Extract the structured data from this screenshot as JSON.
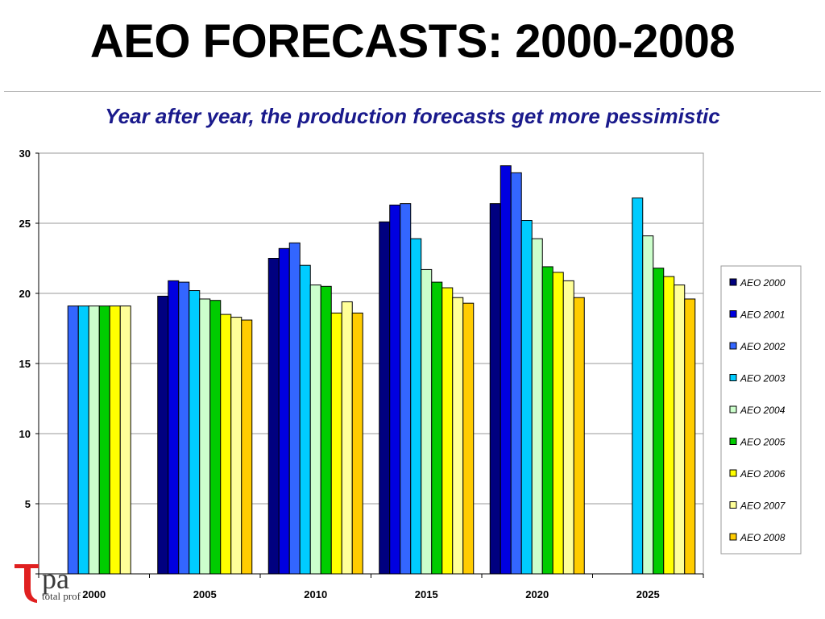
{
  "header": {
    "title": "AEO FORECASTS: 2000-2008",
    "subtitle": "Year after year, the production forecasts get more pessimistic"
  },
  "logo": {
    "letters": "pa",
    "caption": "total prof"
  },
  "chart_data": {
    "type": "bar",
    "categories": [
      "2000",
      "2005",
      "2010",
      "2015",
      "2020",
      "2025"
    ],
    "ylim": [
      0,
      30
    ],
    "yticks": [
      0,
      5,
      10,
      15,
      20,
      25,
      30
    ],
    "legend_position": "right",
    "grid": true,
    "series": [
      {
        "name": "AEO 2000",
        "color": "#000080",
        "values": [
          null,
          19.8,
          22.5,
          25.1,
          26.4,
          null
        ]
      },
      {
        "name": "AEO 2001",
        "color": "#0000e0",
        "values": [
          null,
          20.9,
          23.2,
          26.3,
          29.1,
          null
        ]
      },
      {
        "name": "AEO 2002",
        "color": "#3366ff",
        "values": [
          19.1,
          20.8,
          23.6,
          26.4,
          28.6,
          null
        ]
      },
      {
        "name": "AEO 2003",
        "color": "#00ccff",
        "values": [
          19.1,
          20.2,
          22.0,
          23.9,
          25.2,
          26.8
        ]
      },
      {
        "name": "AEO 2004",
        "color": "#ccffcc",
        "values": [
          19.1,
          19.6,
          20.6,
          21.7,
          23.9,
          24.1
        ]
      },
      {
        "name": "AEO 2005",
        "color": "#00cc00",
        "values": [
          19.1,
          19.5,
          20.5,
          20.8,
          21.9,
          21.8
        ]
      },
      {
        "name": "AEO 2006",
        "color": "#ffff00",
        "values": [
          19.1,
          18.5,
          18.6,
          20.4,
          21.5,
          21.2
        ]
      },
      {
        "name": "AEO 2007",
        "color": "#ffff99",
        "values": [
          19.1,
          18.3,
          19.4,
          19.7,
          20.9,
          20.6
        ]
      },
      {
        "name": "AEO 2008",
        "color": "#ffcc00",
        "values": [
          null,
          18.1,
          18.6,
          19.3,
          19.7,
          19.6
        ]
      }
    ]
  }
}
